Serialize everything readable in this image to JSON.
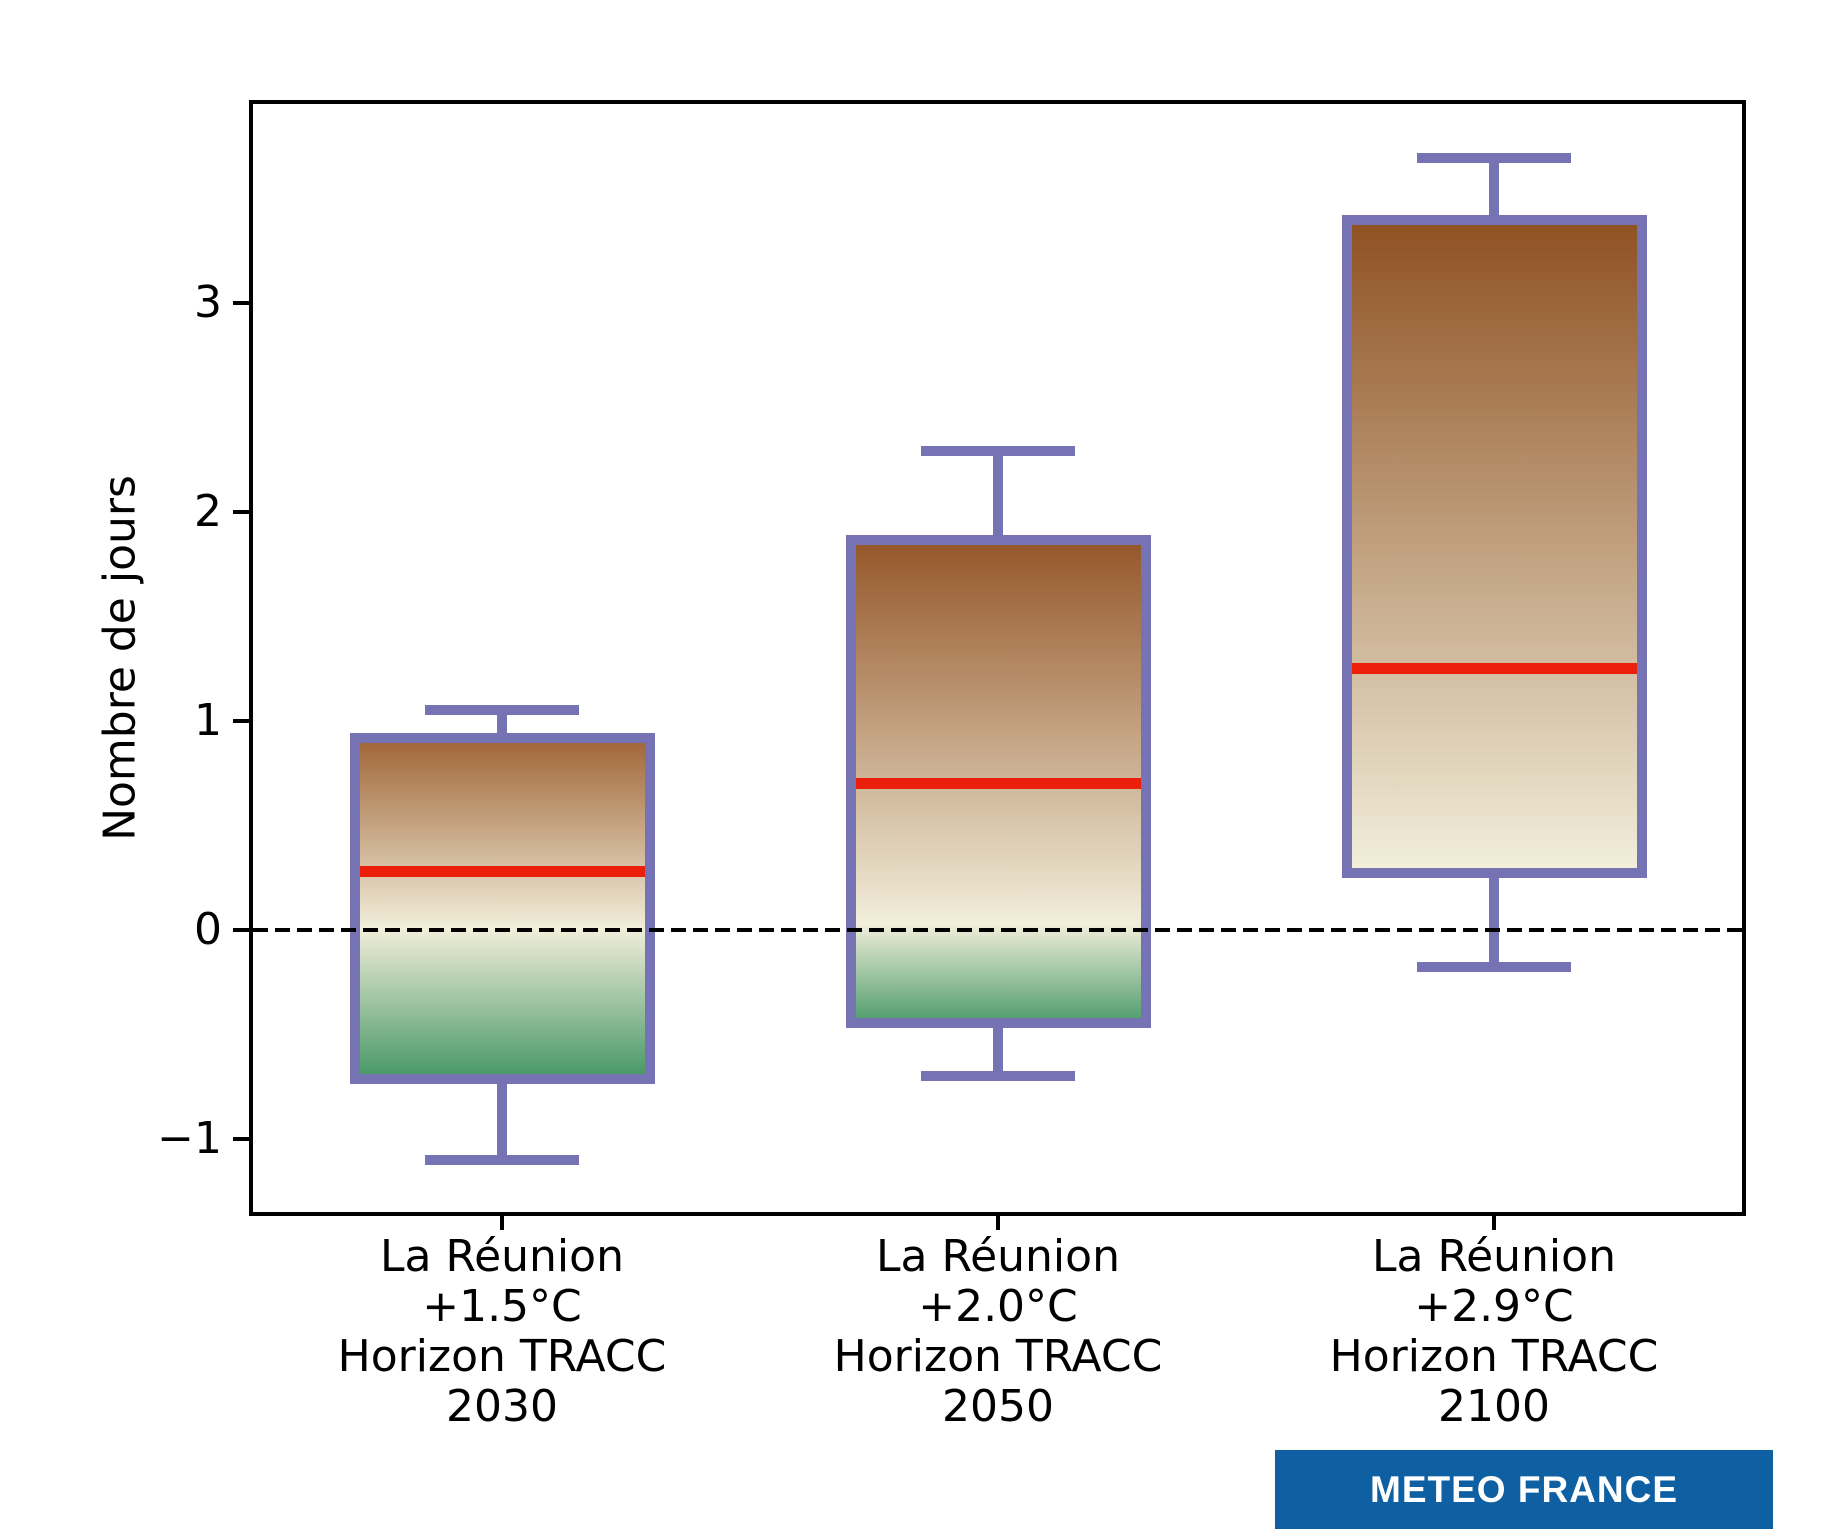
{
  "figure": {
    "background": "#ffffff",
    "logo": {
      "text": "METEO FRANCE",
      "bg": "#0f5fa3",
      "fg": "#ffffff"
    }
  },
  "chart_data": {
    "type": "boxplot",
    "title": "",
    "xlabel": "",
    "ylabel": "Nombre de jours",
    "ylim": [
      -1.35,
      3.95
    ],
    "yticks": [
      -1,
      0,
      1,
      2,
      3
    ],
    "grid": false,
    "zero_line": {
      "show": true,
      "y": 0,
      "style": "dashed",
      "color": "#000000"
    },
    "legend": null,
    "colors": {
      "box_border": "#7673b5",
      "median": "#ec1e0c",
      "fill_cream": "#f1eeda",
      "axis": "#000000"
    },
    "categories": [
      {
        "label_lines": [
          "La Réunion",
          "+1.5°C",
          "Horizon TRACC",
          "2030"
        ],
        "whisker_low": -1.1,
        "q1": -0.74,
        "median": 0.28,
        "q3": 0.94,
        "whisker_high": 1.05,
        "fill_top": "#a2683a",
        "fill_bottom": "#4c9a68"
      },
      {
        "label_lines": [
          "La Réunion",
          "+2.0°C",
          "Horizon TRACC",
          "2050"
        ],
        "whisker_low": -0.7,
        "q1": -0.47,
        "median": 0.7,
        "q3": 1.89,
        "whisker_high": 2.29,
        "fill_top": "#96582b",
        "fill_bottom": "#55a070"
      },
      {
        "label_lines": [
          "La Réunion",
          "+2.9°C",
          "Horizon TRACC",
          "2100"
        ],
        "whisker_low": -0.18,
        "q1": 0.25,
        "median": 1.25,
        "q3": 3.42,
        "whisker_high": 3.69,
        "fill_top": "#8f5223",
        "fill_bottom": "#f1eeda"
      }
    ]
  }
}
